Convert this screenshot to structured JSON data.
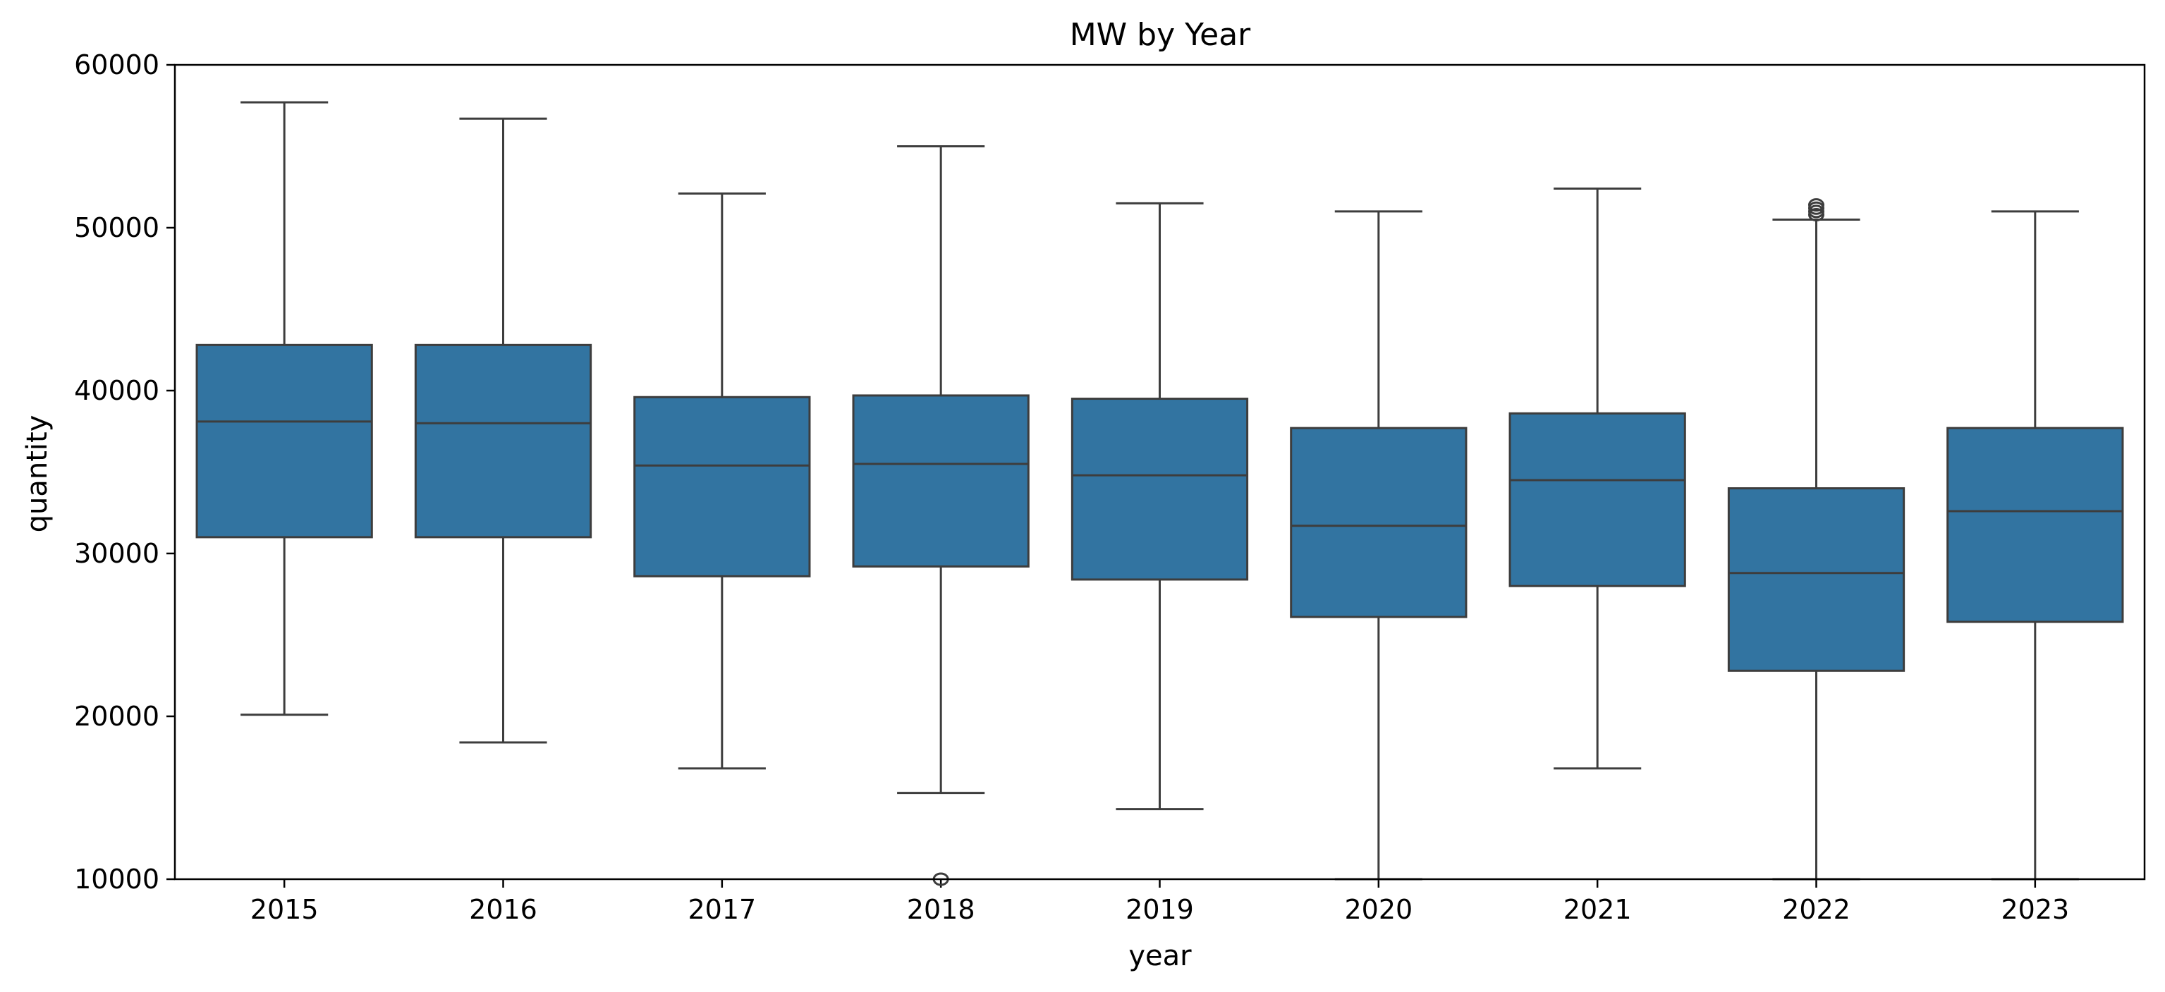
{
  "chart_data": {
    "type": "boxplot",
    "title": "MW by Year",
    "xlabel": "year",
    "ylabel": "quantity",
    "ylim": [
      10000,
      60000
    ],
    "yticks": [
      10000,
      20000,
      30000,
      40000,
      50000,
      60000
    ],
    "grid": false,
    "legend": "none",
    "box_color": "#3274a1",
    "line_color": "#3d3d3d",
    "categories": [
      "2015",
      "2016",
      "2017",
      "2018",
      "2019",
      "2020",
      "2021",
      "2022",
      "2023"
    ],
    "boxes": [
      {
        "year": "2015",
        "whisker_low": 20100,
        "q1": 31000,
        "median": 38100,
        "q3": 42800,
        "whisker_high": 57700,
        "outliers": []
      },
      {
        "year": "2016",
        "whisker_low": 18400,
        "q1": 31000,
        "median": 38000,
        "q3": 42800,
        "whisker_high": 56700,
        "outliers": []
      },
      {
        "year": "2017",
        "whisker_low": 16800,
        "q1": 28600,
        "median": 35400,
        "q3": 39600,
        "whisker_high": 52100,
        "outliers": []
      },
      {
        "year": "2018",
        "whisker_low": 15300,
        "q1": 29200,
        "median": 35500,
        "q3": 39700,
        "whisker_high": 55000,
        "outliers": [
          10000
        ]
      },
      {
        "year": "2019",
        "whisker_low": 14300,
        "q1": 28400,
        "median": 34800,
        "q3": 39500,
        "whisker_high": 51500,
        "outliers": []
      },
      {
        "year": "2020",
        "whisker_low": 10000,
        "q1": 26100,
        "median": 31700,
        "q3": 37700,
        "whisker_high": 51000,
        "outliers": []
      },
      {
        "year": "2021",
        "whisker_low": 16800,
        "q1": 28000,
        "median": 34500,
        "q3": 38600,
        "whisker_high": 52400,
        "outliers": []
      },
      {
        "year": "2022",
        "whisker_low": 10000,
        "q1": 22800,
        "median": 28800,
        "q3": 34000,
        "whisker_high": 50500,
        "outliers": [
          50800,
          51000,
          51200,
          51400
        ]
      },
      {
        "year": "2023",
        "whisker_low": 10000,
        "q1": 25800,
        "median": 32600,
        "q3": 37700,
        "whisker_high": 51000,
        "outliers": []
      }
    ]
  }
}
